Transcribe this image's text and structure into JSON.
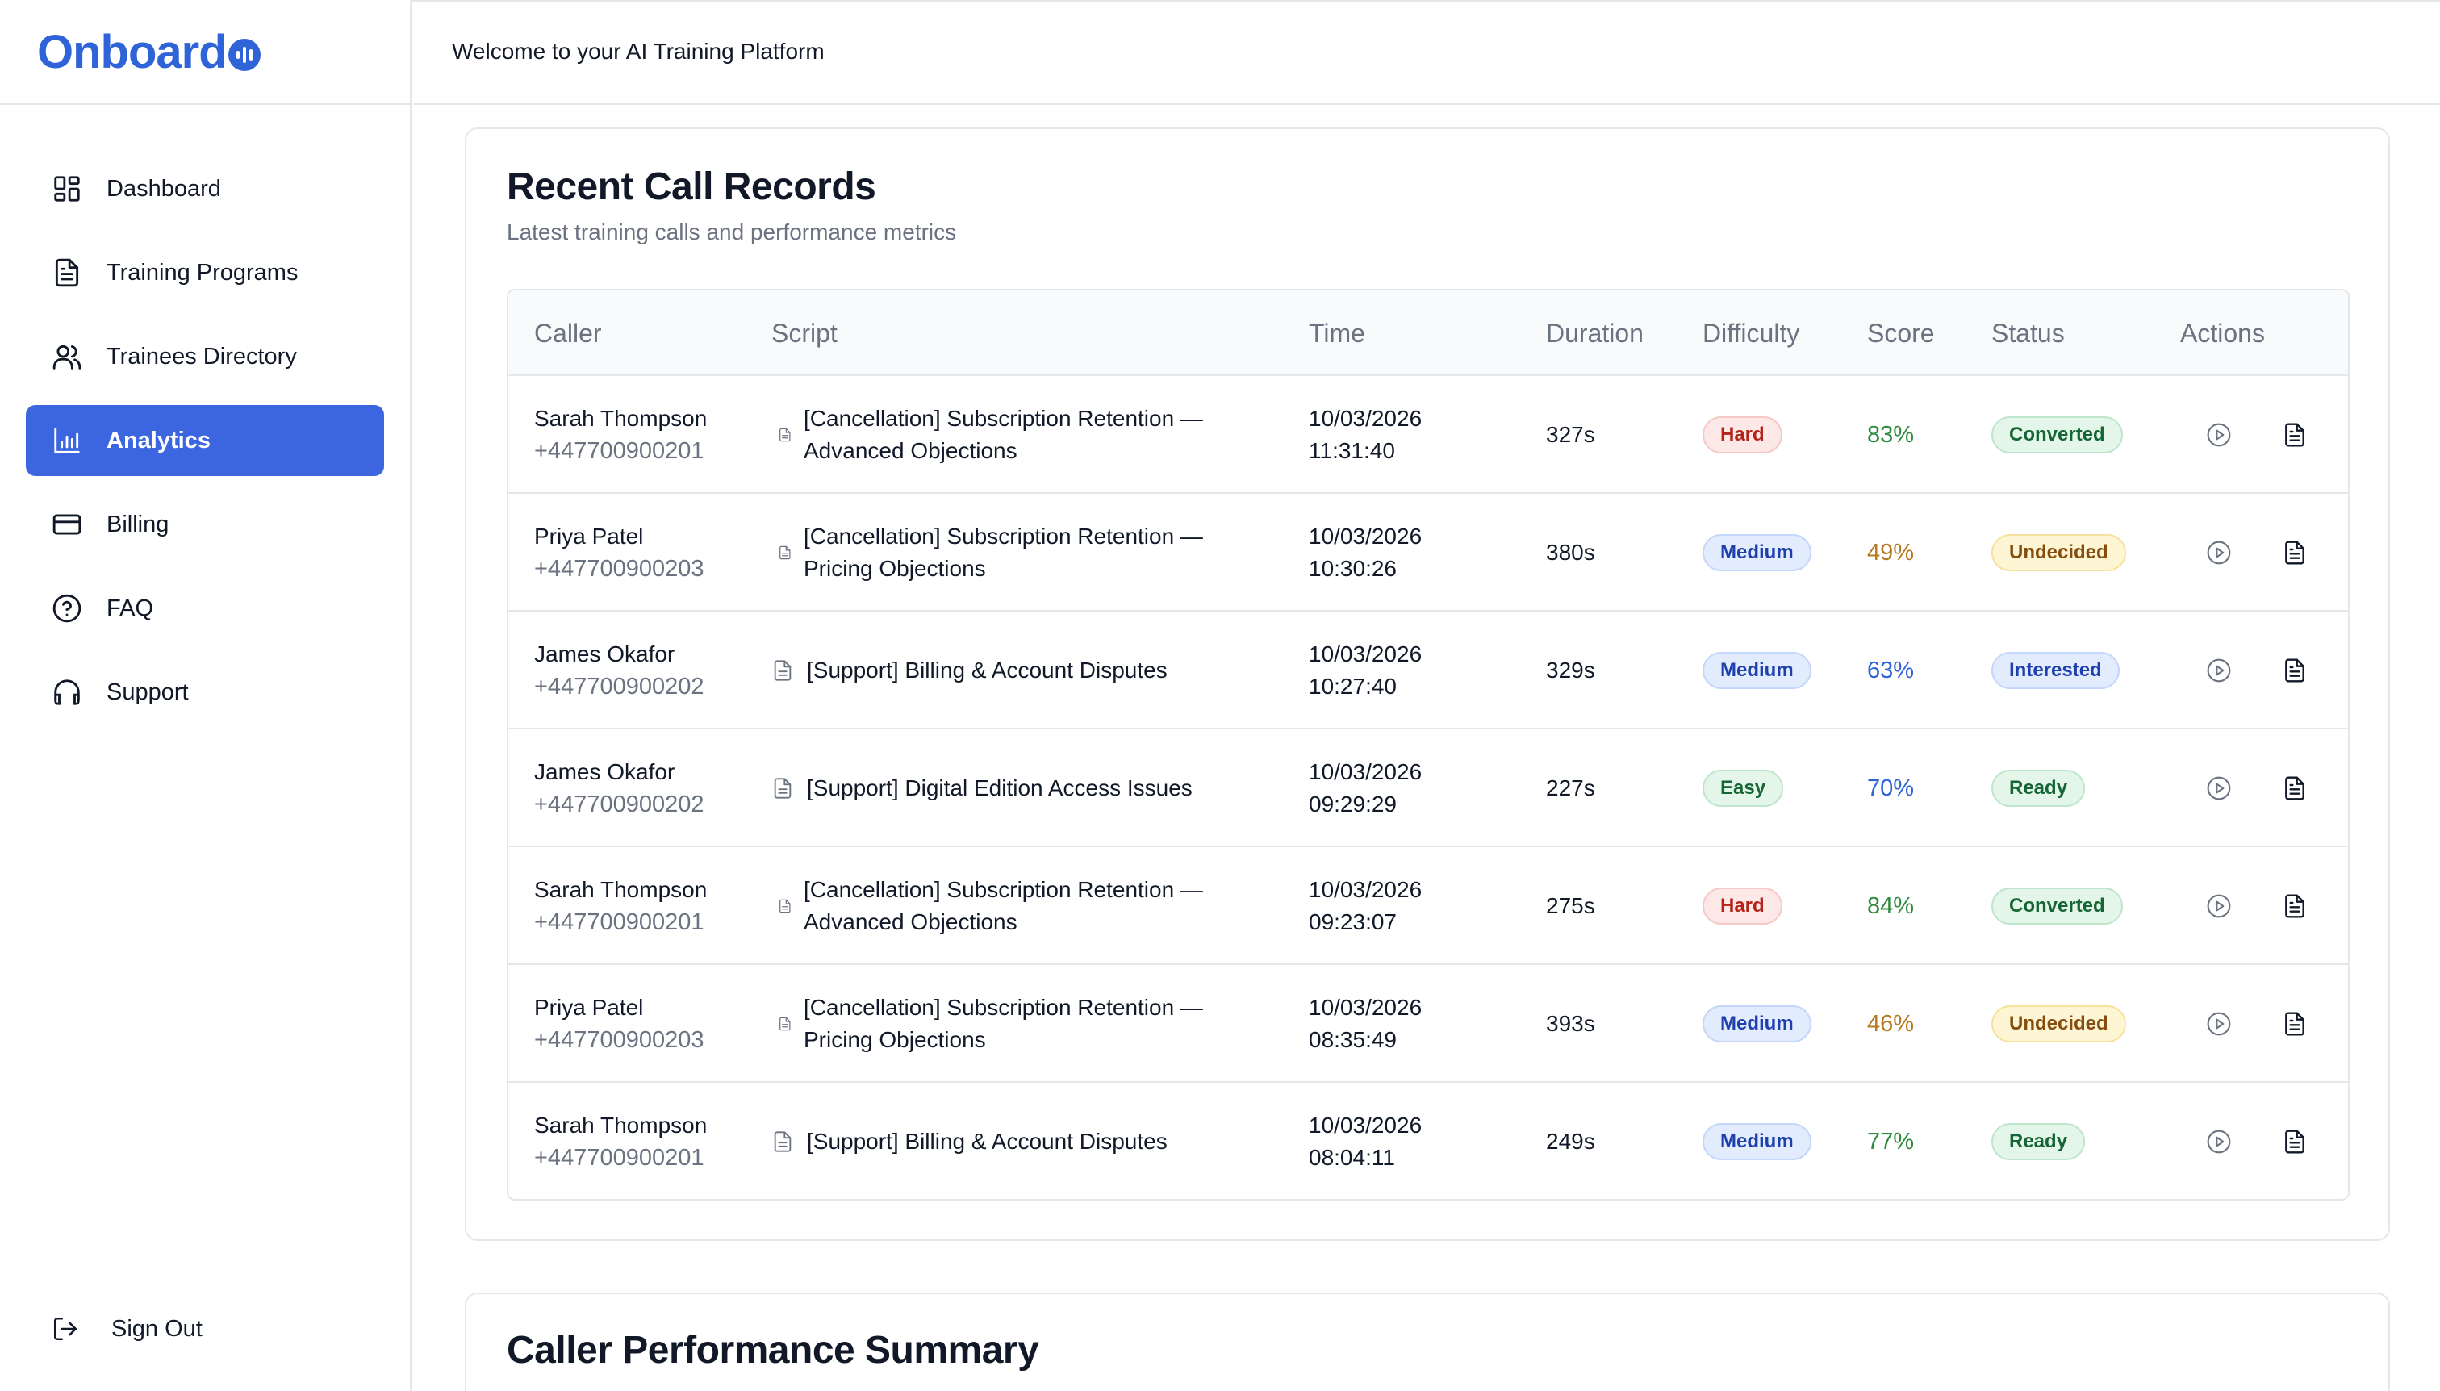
{
  "app": {
    "logo_text": "Onboard"
  },
  "header": {
    "title": "Welcome to your AI Training Platform"
  },
  "sidebar": {
    "items": [
      {
        "label": "Dashboard",
        "icon": "dashboard-icon"
      },
      {
        "label": "Training Programs",
        "icon": "document-icon"
      },
      {
        "label": "Trainees Directory",
        "icon": "users-icon"
      },
      {
        "label": "Analytics",
        "icon": "bar-chart-icon",
        "active": true
      },
      {
        "label": "Billing",
        "icon": "credit-card-icon"
      },
      {
        "label": "FAQ",
        "icon": "help-circle-icon"
      },
      {
        "label": "Support",
        "icon": "headphones-icon"
      }
    ],
    "signout_label": "Sign Out"
  },
  "records": {
    "title": "Recent Call Records",
    "subtitle": "Latest training calls and performance metrics",
    "columns": [
      "Caller",
      "Script",
      "Time",
      "Duration",
      "Difficulty",
      "Score",
      "Status",
      "Actions"
    ],
    "rows": [
      {
        "caller": "Sarah Thompson",
        "phone": "+447700900201",
        "script": "[Cancellation] Subscription Retention — Advanced Objections",
        "date": "10/03/2026",
        "time": "11:31:40",
        "duration": "327s",
        "difficulty": "Hard",
        "score": "83%",
        "status": "Converted"
      },
      {
        "caller": "Priya Patel",
        "phone": "+447700900203",
        "script": "[Cancellation] Subscription Retention — Pricing Objections",
        "date": "10/03/2026",
        "time": "10:30:26",
        "duration": "380s",
        "difficulty": "Medium",
        "score": "49%",
        "status": "Undecided"
      },
      {
        "caller": "James Okafor",
        "phone": "+447700900202",
        "script": "[Support] Billing & Account Disputes",
        "date": "10/03/2026",
        "time": "10:27:40",
        "duration": "329s",
        "difficulty": "Medium",
        "score": "63%",
        "status": "Interested"
      },
      {
        "caller": "James Okafor",
        "phone": "+447700900202",
        "script": "[Support] Digital Edition Access Issues",
        "date": "10/03/2026",
        "time": "09:29:29",
        "duration": "227s",
        "difficulty": "Easy",
        "score": "70%",
        "status": "Ready"
      },
      {
        "caller": "Sarah Thompson",
        "phone": "+447700900201",
        "script": "[Cancellation] Subscription Retention — Advanced Objections",
        "date": "10/03/2026",
        "time": "09:23:07",
        "duration": "275s",
        "difficulty": "Hard",
        "score": "84%",
        "status": "Converted"
      },
      {
        "caller": "Priya Patel",
        "phone": "+447700900203",
        "script": "[Cancellation] Subscription Retention — Pricing Objections",
        "date": "10/03/2026",
        "time": "08:35:49",
        "duration": "393s",
        "difficulty": "Medium",
        "score": "46%",
        "status": "Undecided"
      },
      {
        "caller": "Sarah Thompson",
        "phone": "+447700900201",
        "script": "[Support] Billing & Account Disputes",
        "date": "10/03/2026",
        "time": "08:04:11",
        "duration": "249s",
        "difficulty": "Medium",
        "score": "77%",
        "status": "Ready"
      }
    ]
  },
  "summary": {
    "title": "Caller Performance Summary"
  },
  "colors": {
    "brand": "#2f63d8",
    "active_nav": "#3b66df",
    "score_green": "#2e8b3e",
    "score_amber": "#b7791f",
    "score_blue": "#2f63d8"
  }
}
